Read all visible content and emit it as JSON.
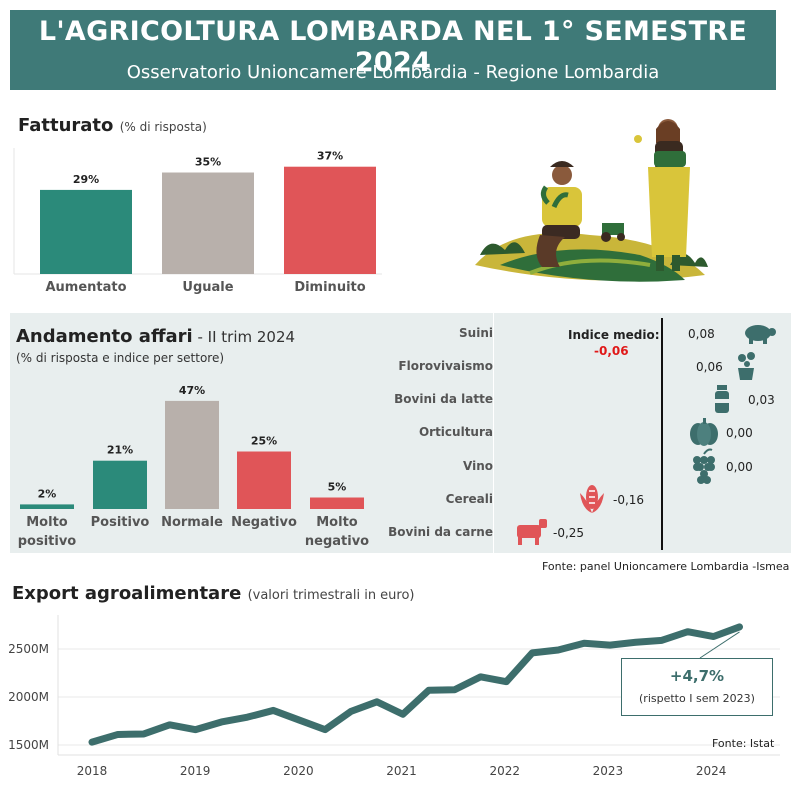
{
  "header": {
    "title": "L'AGRICOLTURA LOMBARDA NEL 1° SEMESTRE 2024",
    "subtitle": "Osservatorio Unioncamere Lombardia - Regione Lombardia"
  },
  "colors": {
    "teal": "#2b8a7a",
    "grey": "#b8b0ab",
    "red": "#e05558",
    "header_bg": "#3f7a78",
    "line": "#3d6e6c"
  },
  "fatturato": {
    "title": "Fatturato",
    "subtitle": "(% di risposta)"
  },
  "andamento": {
    "title": "Andamento affari",
    "title_suffix": " - II trim 2024",
    "subtitle": "(% di risposta e indice per settore)",
    "index_label": "Indice medio:",
    "index_value": "-0,06"
  },
  "export": {
    "title": "Export agroalimentare",
    "subtitle": "(valori trimestrali in euro)",
    "callout_value": "+4,7%",
    "callout_note": "(rispetto I sem 2023)",
    "source": "Fonte: Istat"
  },
  "source_panel": "Fonte: panel Unioncamere Lombardia -Ismea",
  "illustration": {
    "icon": "farmers-illustration"
  },
  "chart_data": [
    {
      "type": "bar",
      "title": "Fatturato",
      "categories": [
        "Aumentato",
        "Uguale",
        "Diminuito"
      ],
      "values": [
        29,
        35,
        37
      ],
      "labels": [
        "29%",
        "35%",
        "37%"
      ],
      "colors": [
        "#2b8a7a",
        "#b8b0ab",
        "#e05558"
      ],
      "ylim": [
        0,
        40
      ]
    },
    {
      "type": "bar",
      "title": "Andamento affari",
      "categories": [
        "Molto positivo",
        "Positivo",
        "Normale",
        "Negativo",
        "Molto negativo"
      ],
      "values": [
        2,
        21,
        47,
        25,
        5
      ],
      "labels": [
        "2%",
        "21%",
        "47%",
        "25%",
        "5%"
      ],
      "colors": [
        "#2b8a7a",
        "#2b8a7a",
        "#b8b0ab",
        "#e05558",
        "#e05558"
      ],
      "ylim": [
        0,
        50
      ]
    },
    {
      "type": "bar",
      "title": "Indice per settore",
      "categories": [
        "Suini",
        "Florovivaismo",
        "Bovini da latte",
        "Orticultura",
        "Vino",
        "Cereali",
        "Bovini da carne"
      ],
      "values": [
        0.08,
        0.06,
        0.03,
        0.0,
        0.0,
        -0.16,
        -0.25
      ],
      "labels": [
        "0,08",
        "0,06",
        "0,03",
        "0,00",
        "0,00",
        "-0,16",
        "-0,25"
      ],
      "icons": [
        "pig-icon",
        "flower-pot-icon",
        "milk-bottle-icon",
        "pumpkin-icon",
        "grapes-icon",
        "corn-icon",
        "cow-icon"
      ]
    },
    {
      "type": "line",
      "title": "Export agroalimentare",
      "x": [
        "2018-Q1",
        "2018-Q2",
        "2018-Q3",
        "2018-Q4",
        "2019-Q1",
        "2019-Q2",
        "2019-Q3",
        "2019-Q4",
        "2020-Q1",
        "2020-Q2",
        "2020-Q3",
        "2020-Q4",
        "2021-Q1",
        "2021-Q2",
        "2021-Q3",
        "2021-Q4",
        "2022-Q1",
        "2022-Q2",
        "2022-Q3",
        "2022-Q4",
        "2023-Q1",
        "2023-Q2",
        "2023-Q3",
        "2023-Q4",
        "2024-Q1",
        "2024-Q2"
      ],
      "values": [
        1530,
        1610,
        1615,
        1710,
        1660,
        1740,
        1790,
        1860,
        1760,
        1660,
        1850,
        1950,
        1820,
        2070,
        2075,
        2210,
        2160,
        2460,
        2490,
        2560,
        2540,
        2570,
        2590,
        2680,
        2630,
        2730
      ],
      "x_ticks": [
        "2018",
        "2019",
        "2020",
        "2021",
        "2022",
        "2023",
        "2024"
      ],
      "y_ticks": [
        "1500M",
        "2000M",
        "2500M"
      ],
      "y_tick_values": [
        1500,
        2000,
        2500
      ],
      "ylim": [
        1450,
        2800
      ]
    }
  ]
}
